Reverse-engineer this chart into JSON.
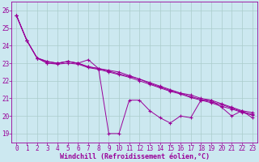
{
  "xlabel": "Windchill (Refroidissement éolien,°C)",
  "bg_color": "#cce8f0",
  "line_color": "#990099",
  "grid_color": "#aacccc",
  "xlim": [
    -0.5,
    23.5
  ],
  "ylim": [
    18.5,
    26.5
  ],
  "yticks": [
    19,
    20,
    21,
    22,
    23,
    24,
    25,
    26
  ],
  "xticks": [
    0,
    1,
    2,
    3,
    4,
    5,
    6,
    7,
    8,
    9,
    10,
    11,
    12,
    13,
    14,
    15,
    16,
    17,
    18,
    19,
    20,
    21,
    22,
    23
  ],
  "series1": [
    25.7,
    24.3,
    23.3,
    23.1,
    23.0,
    23.1,
    23.0,
    23.2,
    22.7,
    19.0,
    19.0,
    20.9,
    20.9,
    20.3,
    19.9,
    19.6,
    20.0,
    19.9,
    20.9,
    20.9,
    20.5,
    20.0,
    20.3,
    19.9
  ],
  "series2": [
    25.7,
    24.3,
    23.3,
    23.1,
    23.0,
    23.1,
    23.0,
    22.8,
    22.7,
    22.6,
    22.5,
    22.3,
    22.1,
    21.9,
    21.7,
    21.5,
    21.3,
    21.2,
    21.0,
    20.9,
    20.7,
    20.5,
    20.3,
    20.2
  ],
  "series3": [
    25.7,
    24.3,
    23.3,
    23.0,
    23.0,
    23.1,
    23.0,
    22.8,
    22.7,
    22.55,
    22.4,
    22.25,
    22.1,
    21.85,
    21.65,
    21.45,
    21.3,
    21.1,
    20.95,
    20.8,
    20.65,
    20.45,
    20.25,
    20.1
  ],
  "series4": [
    25.7,
    24.3,
    23.3,
    23.0,
    22.95,
    23.0,
    22.95,
    22.75,
    22.65,
    22.5,
    22.35,
    22.2,
    22.0,
    21.8,
    21.6,
    21.4,
    21.25,
    21.05,
    20.9,
    20.75,
    20.55,
    20.4,
    20.2,
    20.05
  ],
  "xlabel_fontsize": 6.0,
  "xlabel_fontfamily": "monospace",
  "tick_fontsize": 5.5,
  "tick_color": "#990099"
}
